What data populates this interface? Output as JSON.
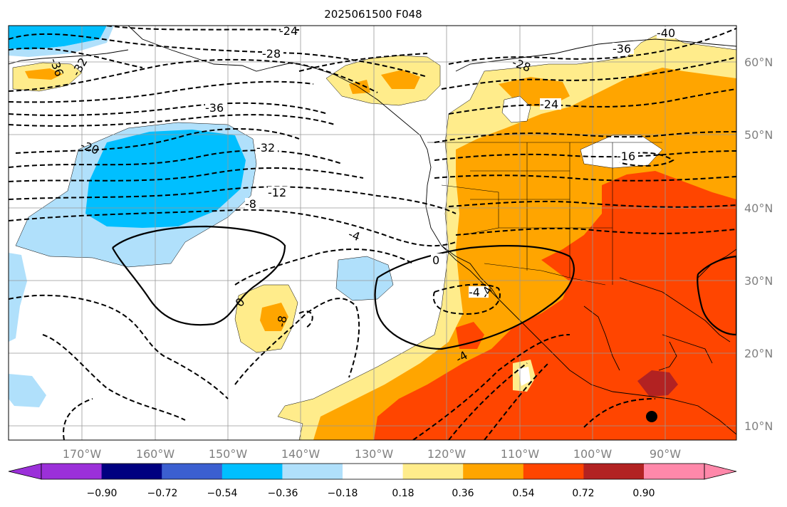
{
  "title": "2025061500 F048",
  "lon_labels": [
    "170°W",
    "160°W",
    "150°W",
    "140°W",
    "130°W",
    "120°W",
    "110°W",
    "100°W",
    "90°W"
  ],
  "lat_labels": [
    "60°N",
    "50°N",
    "40°N",
    "30°N",
    "20°N",
    "10°N"
  ],
  "colorbar": {
    "colors": [
      "#9b30d9",
      "#000080",
      "#3b5fd0",
      "#00bfff",
      "#b0e0fb",
      "#ffffff",
      "#ffec8b",
      "#ffa500",
      "#ff4500",
      "#b22222",
      "#ff88aa"
    ],
    "tick_labels": [
      "−0.90",
      "−0.72",
      "−0.54",
      "−0.36",
      "−0.18",
      "0.18",
      "0.36",
      "0.54",
      "0.72",
      "0.90"
    ]
  },
  "contour_labels": [
    "-24",
    "-28",
    "-36",
    "-40",
    "-36",
    "-28",
    "-32",
    "-36",
    "-32",
    "-20",
    "-24",
    "-16",
    "-12",
    "-8",
    "-4",
    "0",
    "0",
    "-4",
    "-4",
    "-8",
    "-4"
  ],
  "colors": {
    "land": "#000000",
    "grid": "#808080",
    "contour": "#000000",
    "marker": "#000000"
  }
}
